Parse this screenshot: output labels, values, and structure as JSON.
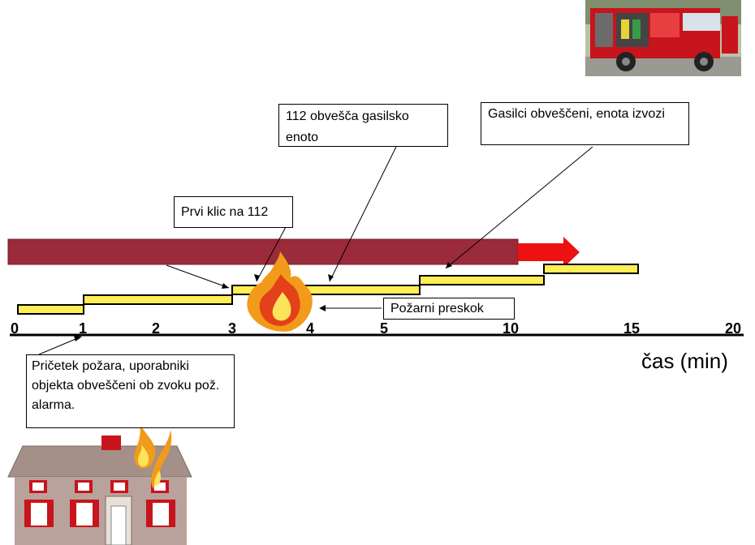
{
  "callouts": {
    "first_call": "Prvi klic na 112",
    "notify_unit": "112 obvešča gasilsko enoto",
    "firefighters_out": "Gasilci obveščeni, enota izvozi",
    "flashover": "Požarni preskok",
    "fire_start": "Pričetek požara, uporabniki objekta obveščeni ob zvoku pož. alarma."
  },
  "axis": {
    "ticks": [
      "0",
      "1",
      "2",
      "3",
      "4",
      "5",
      "10",
      "15",
      "20"
    ],
    "label": "čas (min)"
  },
  "icons": {
    "truck": "fire-truck-photo",
    "flame": "flame-icon",
    "house": "burning-house-icon"
  },
  "colors": {
    "bar": "#9b2b3a",
    "arrow": "#ee1111",
    "step": "#ffee55"
  }
}
